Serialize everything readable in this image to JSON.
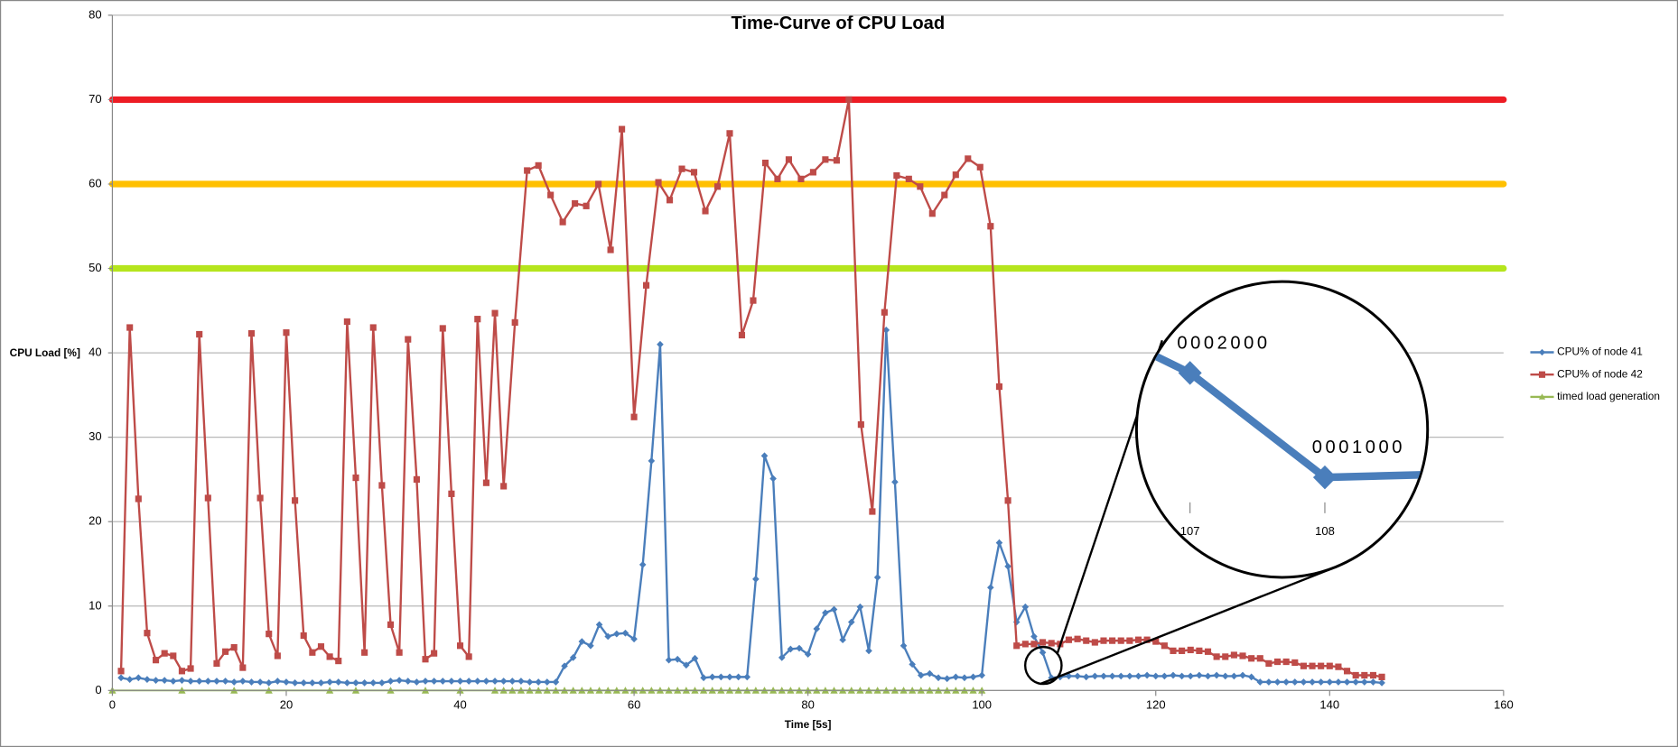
{
  "chart_data": {
    "type": "line",
    "title": "Time-Curve of CPU Load",
    "xlabel": "Time [5s]",
    "ylabel": "CPU Load [%]",
    "xlim": [
      0,
      160
    ],
    "xticks": [
      0,
      20,
      40,
      60,
      80,
      100,
      120,
      140,
      160
    ],
    "ylim": [
      0,
      80
    ],
    "yticks": [
      0,
      10,
      20,
      30,
      40,
      50,
      60,
      70,
      80
    ],
    "grid": true,
    "legend": "right",
    "threshold_lines": [
      {
        "value": 70,
        "color": "#ed1c24"
      },
      {
        "value": 60,
        "color": "#ffc000"
      },
      {
        "value": 50,
        "color": "#b5e51d"
      }
    ],
    "series": [
      {
        "name": "CPU% of node 41",
        "color": "#4a7ebb",
        "marker": "diamond",
        "x": [
          1,
          2,
          3,
          4,
          5,
          6,
          7,
          8,
          9,
          10,
          11,
          12,
          13,
          14,
          15,
          16,
          17,
          18,
          19,
          20,
          21,
          22,
          23,
          24,
          25,
          26,
          27,
          28,
          29,
          30,
          31,
          32,
          33,
          34,
          35,
          36,
          37,
          38,
          39,
          40,
          41,
          42,
          43,
          44,
          45,
          46,
          47,
          48,
          49,
          50,
          51,
          52,
          53,
          54,
          55,
          56,
          57,
          58,
          59,
          60,
          61,
          62,
          63,
          64,
          65,
          66,
          67,
          68,
          69,
          70,
          71,
          72,
          73,
          74,
          75,
          76,
          77,
          78,
          79,
          80,
          81,
          82,
          83,
          84,
          85,
          86,
          87,
          88,
          89,
          90,
          91,
          92,
          93,
          94,
          95,
          96,
          97,
          98,
          99,
          100,
          101,
          102,
          103,
          104,
          105,
          106,
          107,
          108,
          109,
          110,
          111,
          112,
          113,
          114,
          115,
          116,
          117,
          118,
          119,
          120,
          121,
          122,
          123,
          124,
          125,
          126,
          127,
          128,
          129,
          130,
          131,
          132,
          133,
          134,
          135,
          136,
          137,
          138,
          139,
          140,
          141,
          142,
          143,
          144,
          145,
          146
        ],
        "values": [
          1.5,
          1.3,
          1.5,
          1.3,
          1.2,
          1.2,
          1.1,
          1.2,
          1.1,
          1.1,
          1.1,
          1.1,
          1.1,
          1.0,
          1.1,
          1.0,
          1.0,
          0.9,
          1.1,
          1.0,
          0.9,
          0.9,
          0.9,
          0.9,
          1.0,
          1.0,
          0.9,
          0.9,
          0.9,
          0.9,
          0.9,
          1.1,
          1.2,
          1.1,
          1.0,
          1.1,
          1.1,
          1.1,
          1.1,
          1.1,
          1.1,
          1.1,
          1.1,
          1.1,
          1.1,
          1.1,
          1.1,
          1.0,
          1.0,
          1.0,
          1.0,
          2.9,
          3.9,
          5.8,
          5.3,
          7.8,
          6.4,
          6.7,
          6.8,
          6.1,
          14.9,
          27.2,
          41,
          3.6,
          3.7,
          3,
          3.8,
          1.5,
          1.6,
          1.6,
          1.6,
          1.6,
          1.6,
          13.2,
          27.8,
          25.1,
          3.9,
          4.9,
          5,
          4.3,
          7.3,
          9.2,
          9.6,
          6,
          8.1,
          9.9,
          4.7,
          13.4,
          42.7,
          24.7,
          5.3,
          3.1,
          1.8,
          2,
          1.5,
          1.4,
          1.6,
          1.5,
          1.6,
          1.8,
          12.2,
          17.5,
          14.7,
          8.1,
          9.9,
          6.4,
          4.5,
          1.5,
          1.6,
          1.7,
          1.7,
          1.6,
          1.7,
          1.7,
          1.7,
          1.7,
          1.7,
          1.7,
          1.8,
          1.7,
          1.7,
          1.8,
          1.7,
          1.7,
          1.8,
          1.7,
          1.8,
          1.7,
          1.7,
          1.8,
          1.6,
          1.0,
          1,
          1,
          1,
          1,
          1,
          1,
          1,
          1,
          1,
          1,
          1,
          1,
          1,
          0.9
        ]
      },
      {
        "name": "CPU% of node 42",
        "color": "#be4b48",
        "marker": "square",
        "x": [
          1,
          2,
          3,
          4,
          5,
          6,
          7,
          8,
          9,
          10,
          11,
          12,
          13,
          14,
          15,
          16,
          17,
          18,
          19,
          20,
          21,
          22,
          23,
          24,
          25,
          26,
          27,
          28,
          29,
          30,
          31,
          32,
          33,
          34,
          35,
          36,
          37,
          38,
          39,
          40,
          41,
          42,
          43,
          44,
          45,
          46.3,
          47.7,
          49.0,
          50.4,
          51.8,
          53.2,
          54.5,
          55.9,
          57.3,
          58.6,
          60.0,
          61.4,
          62.8,
          64.1,
          65.5,
          66.9,
          68.2,
          69.6,
          71.0,
          72.4,
          73.7,
          75.1,
          76.5,
          77.8,
          79.2,
          80.6,
          82.0,
          83.3,
          84.7,
          86.1,
          87.4,
          88.8,
          90.2,
          91.6,
          92.9,
          94.3,
          95.7,
          97.0,
          98.4,
          99.8,
          101,
          102,
          103,
          104,
          105,
          106,
          107,
          108,
          109,
          110,
          111,
          112,
          113,
          114,
          115,
          116,
          117,
          118,
          119,
          120,
          121,
          122,
          123,
          124,
          125,
          126,
          127,
          128,
          129,
          130,
          131,
          132,
          133,
          134,
          135,
          136,
          137,
          138,
          139,
          140,
          141,
          142,
          143,
          144,
          145,
          146
        ],
        "values": [
          2.3,
          43,
          22.7,
          6.8,
          3.6,
          4.4,
          4.1,
          2.3,
          2.6,
          42.2,
          22.8,
          3.2,
          4.6,
          5.1,
          2.7,
          42.3,
          22.8,
          6.7,
          4.1,
          42.4,
          22.5,
          6.5,
          4.5,
          5.2,
          4,
          3.5,
          43.7,
          25.2,
          4.5,
          43,
          24.3,
          7.8,
          4.5,
          41.6,
          25,
          3.7,
          4.4,
          42.9,
          23.3,
          5.3,
          4,
          44,
          24.6,
          44.7,
          24.2,
          43.6,
          61.6,
          62.2,
          58.7,
          55.5,
          57.7,
          57.4,
          60,
          52.2,
          66.5,
          32.4,
          48,
          60.2,
          58.1,
          61.8,
          61.4,
          56.8,
          59.7,
          66,
          42.1,
          46.2,
          62.5,
          60.6,
          62.9,
          60.6,
          61.4,
          62.9,
          62.8,
          70,
          31.5,
          21.2,
          44.8,
          61,
          60.6,
          59.7,
          56.5,
          58.7,
          61.1,
          63,
          62,
          55,
          36,
          22.5,
          5.3,
          5.5,
          5.5,
          5.7,
          5.6,
          5.5,
          6,
          6.1,
          5.9,
          5.7,
          5.9,
          5.9,
          5.9,
          5.9,
          6,
          6,
          5.8,
          5.3,
          4.7,
          4.7,
          4.8,
          4.7,
          4.6,
          4,
          4,
          4.2,
          4.1,
          3.8,
          3.8,
          3.2,
          3.4,
          3.4,
          3.3,
          2.9,
          2.9,
          2.9,
          2.9,
          2.8,
          2.3,
          1.8,
          1.8,
          1.8,
          1.6
        ]
      },
      {
        "name": "timed load generation",
        "color": "#98b954",
        "marker": "triangle",
        "x": [
          0,
          8,
          14,
          18,
          25,
          28,
          32,
          36,
          40,
          44,
          45,
          46,
          47,
          48,
          49,
          50,
          51,
          52,
          53,
          54,
          55,
          56,
          57,
          58,
          59,
          60,
          61,
          62,
          63,
          64,
          65,
          66,
          67,
          68,
          69,
          70,
          71,
          72,
          73,
          74,
          75,
          76,
          77,
          78,
          79,
          80,
          81,
          82,
          83,
          84,
          85,
          86,
          87,
          88,
          89,
          90,
          91,
          92,
          93,
          94,
          95,
          96,
          97,
          98,
          99,
          100
        ],
        "values": [
          0,
          0,
          0,
          0,
          0,
          0,
          0,
          0,
          0,
          0,
          0,
          0,
          0,
          0,
          0,
          0,
          0,
          0,
          0,
          0,
          0,
          0,
          0,
          0,
          0,
          0,
          0,
          0,
          0,
          0,
          0,
          0,
          0,
          0,
          0,
          0,
          0,
          0,
          0,
          0,
          0,
          0,
          0,
          0,
          0,
          0,
          0,
          0,
          0,
          0,
          0,
          0,
          0,
          0,
          0,
          0,
          0,
          0,
          0,
          0,
          0,
          0,
          0,
          0,
          0,
          0
        ]
      }
    ],
    "inset": {
      "xticks": [
        107,
        108
      ],
      "xlim": [
        105,
        110
      ],
      "annotations": [
        {
          "x": 107,
          "label": "0002000"
        },
        {
          "x": 108,
          "label": "0001000"
        }
      ]
    }
  }
}
